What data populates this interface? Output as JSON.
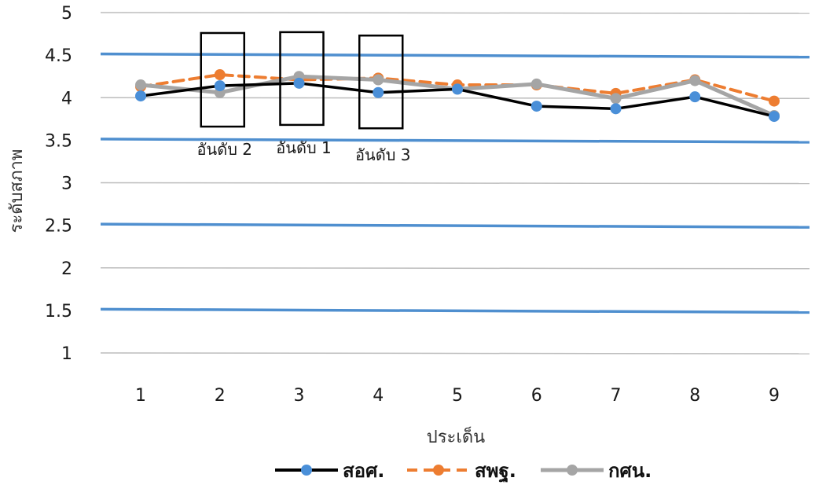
{
  "chart_data": {
    "type": "line",
    "xlabel": "ประเด็น",
    "ylabel": "ระดับสภาพ",
    "ylim": [
      1,
      5
    ],
    "yticks": [
      "1",
      "1.5",
      "2",
      "2.5",
      "3",
      "3.5",
      "4",
      "4.5",
      "5"
    ],
    "categories": [
      "1",
      "2",
      "3",
      "4",
      "5",
      "6",
      "7",
      "8",
      "9"
    ],
    "grid": true,
    "legend_position": "bottom",
    "series": [
      {
        "name": "สอศ.",
        "color": "#000000",
        "marker_color": "#4a8fd8",
        "style": "solid",
        "values": [
          4.02,
          4.14,
          4.17,
          4.06,
          4.1,
          3.9,
          3.87,
          4.01,
          3.78
        ]
      },
      {
        "name": "สพฐ.",
        "color": "#ed7d31",
        "marker_color": "#ed7d31",
        "style": "dashed",
        "values": [
          4.13,
          4.27,
          4.21,
          4.23,
          4.15,
          4.15,
          4.05,
          4.21,
          3.96
        ]
      },
      {
        "name": "กศน.",
        "color": "#a5a5a5",
        "marker_color": "#a5a5a5",
        "style": "solid",
        "values": [
          4.15,
          4.06,
          4.25,
          4.21,
          4.1,
          4.16,
          3.99,
          4.2,
          3.79
        ]
      }
    ],
    "annotations": [
      {
        "category": "2",
        "text": "อันดับ 2",
        "box_range": [
          3.66,
          4.76
        ]
      },
      {
        "category": "3",
        "text": "อันดับ 1",
        "box_range": [
          3.68,
          4.77
        ]
      },
      {
        "category": "4",
        "text": "อันดับ 3",
        "box_range": [
          3.64,
          4.73
        ]
      }
    ]
  }
}
